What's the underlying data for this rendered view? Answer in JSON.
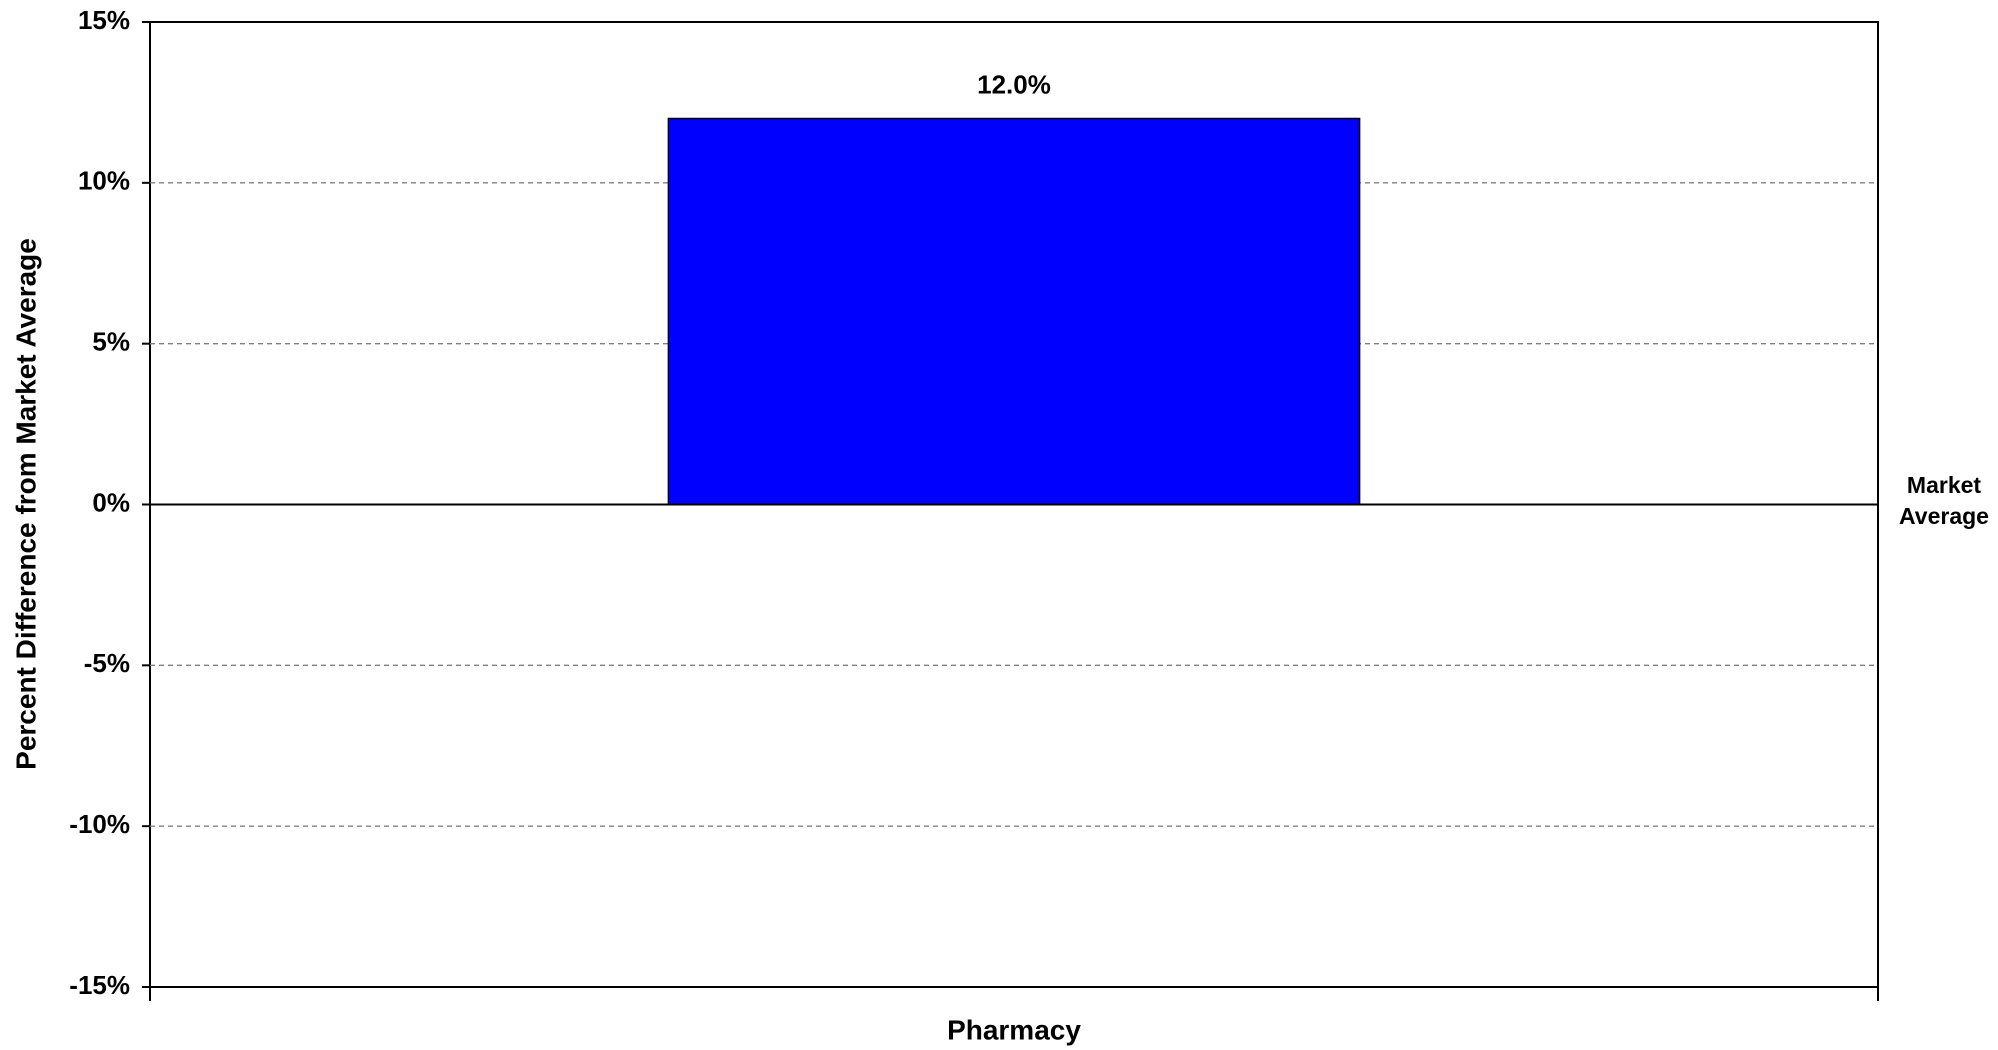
{
  "chart_data": {
    "type": "bar",
    "y_label": "Percent Difference from Market Average",
    "categories": [
      "Pharmacy"
    ],
    "values": [
      12.0
    ],
    "value_labels": [
      "12.0%"
    ],
    "color": "#0000ff",
    "ylim": [
      -15,
      15
    ],
    "yticks": [
      {
        "value": -15,
        "label": "-15%"
      },
      {
        "value": -10,
        "label": "-10%"
      },
      {
        "value": -5,
        "label": "-5%"
      },
      {
        "value": 0,
        "label": "0%"
      },
      {
        "value": 5,
        "label": "5%"
      },
      {
        "value": 10,
        "label": "10%"
      },
      {
        "value": 15,
        "label": "15%"
      }
    ],
    "grid": true,
    "reference_line_label": "Market Average"
  }
}
